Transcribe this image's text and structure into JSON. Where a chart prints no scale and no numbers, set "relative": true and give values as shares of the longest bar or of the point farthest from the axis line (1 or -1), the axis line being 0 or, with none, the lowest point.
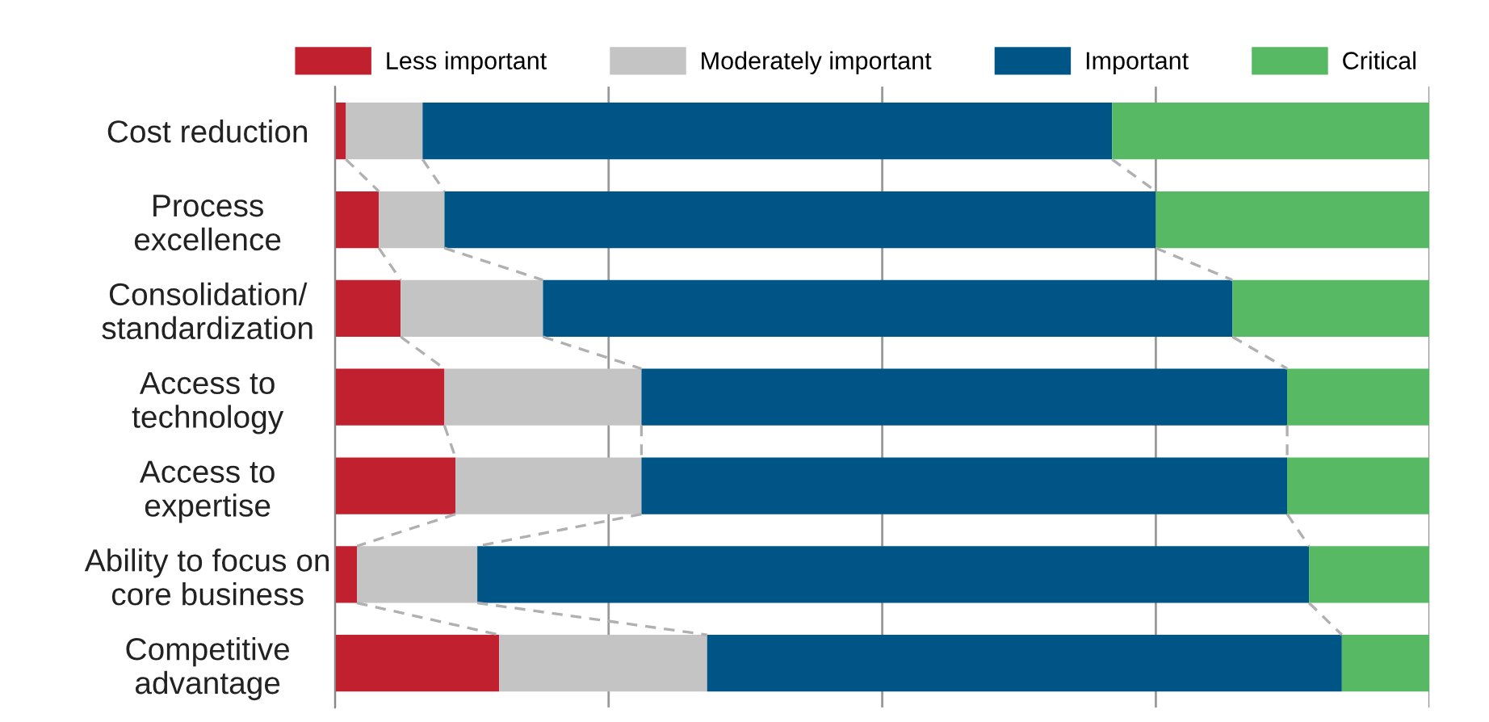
{
  "chart_data": {
    "type": "bar",
    "orientation": "horizontal",
    "stacked": true,
    "relative": true,
    "categories": [
      "Cost reduction",
      "Process\nexcellence",
      "Consolidation/\nstandardization",
      "Access to\ntechnology",
      "Access to\nexpertise",
      "Ability to focus on\ncore business",
      "Competitive\nadvantage"
    ],
    "series": [
      {
        "name": "Less important",
        "color": "#c1202f",
        "values": [
          0.01,
          0.04,
          0.06,
          0.1,
          0.11,
          0.02,
          0.15
        ]
      },
      {
        "name": "Moderately important",
        "color": "#c4c4c4",
        "values": [
          0.07,
          0.06,
          0.13,
          0.18,
          0.17,
          0.11,
          0.19
        ]
      },
      {
        "name": "Important",
        "color": "#005587",
        "values": [
          0.63,
          0.65,
          0.63,
          0.59,
          0.59,
          0.76,
          0.58
        ]
      },
      {
        "name": "Critical",
        "color": "#57b963",
        "values": [
          0.29,
          0.25,
          0.18,
          0.13,
          0.13,
          0.11,
          0.08
        ]
      }
    ],
    "legend": "top",
    "grid": "x"
  }
}
